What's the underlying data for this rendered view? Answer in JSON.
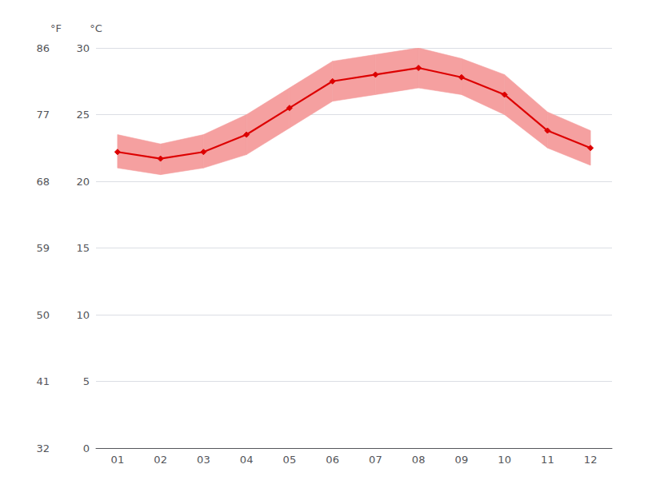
{
  "chart_data": {
    "type": "line",
    "categories": [
      "01",
      "02",
      "03",
      "04",
      "05",
      "06",
      "07",
      "08",
      "09",
      "10",
      "11",
      "12"
    ],
    "series": [
      {
        "type": "band",
        "color": "#f5a0a0",
        "low": [
          21.0,
          20.5,
          21.0,
          22.0,
          24.0,
          26.0,
          26.5,
          27.0,
          26.5,
          25.0,
          22.5,
          21.2
        ],
        "high": [
          23.5,
          22.8,
          23.5,
          25.0,
          27.0,
          29.0,
          29.5,
          30.0,
          29.2,
          28.0,
          25.2,
          23.8
        ]
      },
      {
        "type": "line",
        "color": "#dd0000",
        "marker": "diamond",
        "values": [
          22.2,
          21.7,
          22.2,
          23.5,
          25.5,
          27.5,
          28.0,
          28.5,
          27.8,
          26.5,
          23.8,
          22.5
        ]
      }
    ],
    "ylabel": "°C",
    "ylim": [
      0,
      30
    ],
    "yticks": [
      0,
      5,
      10,
      15,
      20,
      25,
      30
    ],
    "y2label": "°F",
    "y2lim": [
      32,
      86
    ],
    "y2ticks": [
      32,
      41,
      50,
      59,
      68,
      77,
      86
    ],
    "grid": true
  }
}
